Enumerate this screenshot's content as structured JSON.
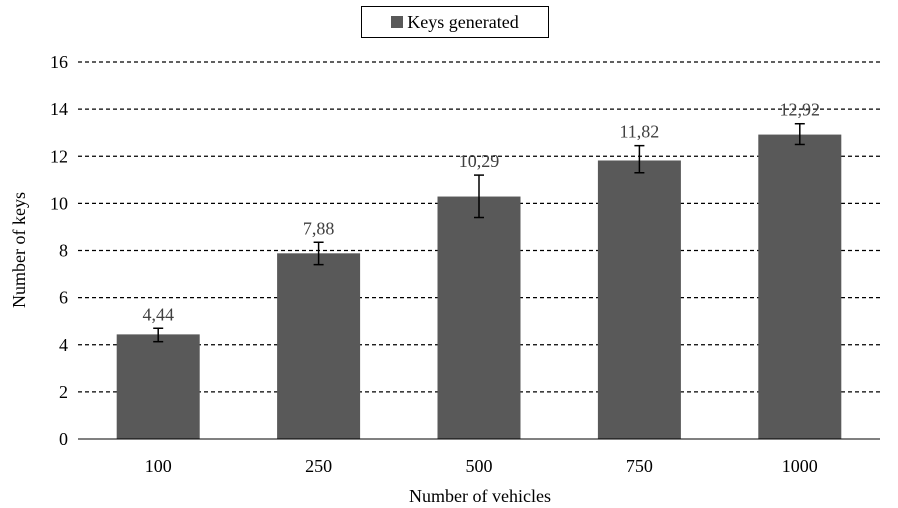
{
  "chart_data": {
    "type": "bar",
    "categories": [
      "100",
      "250",
      "500",
      "750",
      "1000"
    ],
    "series": [
      {
        "name": "Keys generated",
        "values": [
          4.44,
          7.88,
          10.29,
          11.82,
          12.92
        ],
        "value_labels": [
          "4,44",
          "7,88",
          "10,29",
          "11,82",
          "12,92"
        ],
        "error_low": [
          4.13,
          7.4,
          9.4,
          11.3,
          12.5
        ],
        "error_high": [
          4.7,
          8.35,
          11.2,
          12.45,
          13.38
        ]
      }
    ],
    "xlabel": "Number of vehicles",
    "ylabel": "Number of keys",
    "ylim": [
      0,
      16
    ],
    "yticks": [
      "0",
      "2",
      "4",
      "6",
      "8",
      "10",
      "12",
      "14",
      "16"
    ],
    "grid": "horizontal-dashed",
    "legend_position": "top-center",
    "bar_color": "#595959"
  }
}
